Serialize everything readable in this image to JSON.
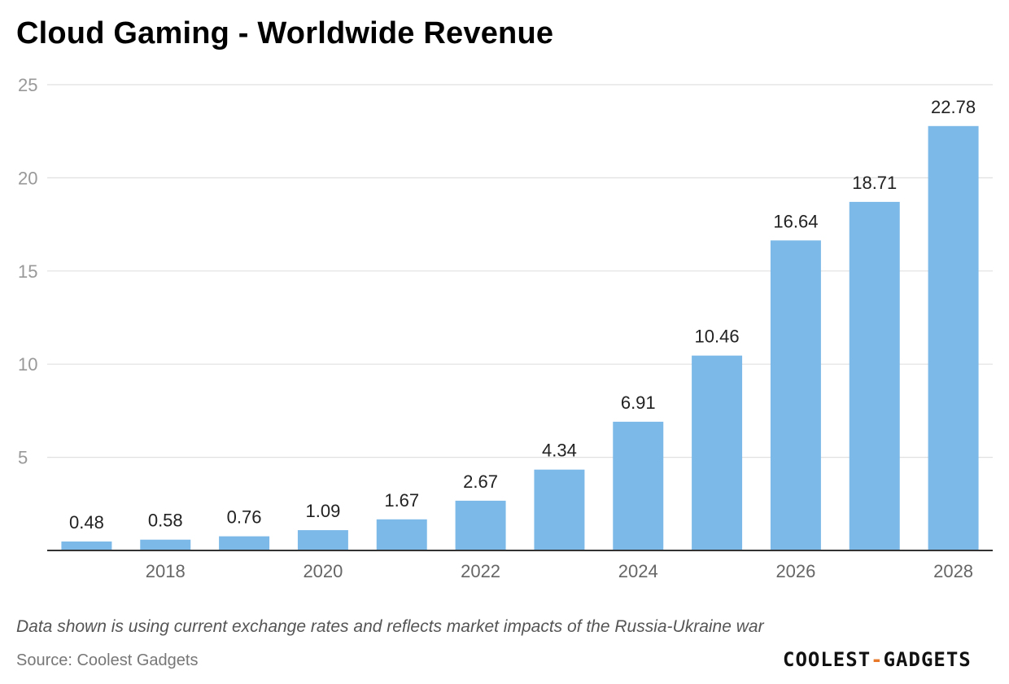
{
  "title": "Cloud Gaming - Worldwide Revenue",
  "note": "Data shown is using current exchange rates and reflects market impacts of the Russia-Ukraine war",
  "source": "Source: Coolest Gadgets",
  "logo": {
    "left": "COOLEST",
    "dash": "-",
    "right": "GADGETS"
  },
  "colors": {
    "bar": "#7cb9e8",
    "grid": "#e0e0e0",
    "axis": "#333333",
    "tick": "#999999",
    "label": "#222222"
  },
  "chart_data": {
    "type": "bar",
    "x": [
      2017,
      2018,
      2019,
      2020,
      2021,
      2022,
      2023,
      2024,
      2025,
      2026,
      2027,
      2028
    ],
    "values": [
      0.48,
      0.58,
      0.76,
      1.09,
      1.67,
      2.67,
      4.34,
      6.91,
      10.46,
      16.64,
      18.71,
      22.78
    ],
    "data_labels": [
      "0.48",
      "0.58",
      "0.76",
      "1.09",
      "1.67",
      "2.67",
      "4.34",
      "6.91",
      "10.46",
      "16.64",
      "18.71",
      "22.78"
    ],
    "x_tick_labels": [
      "2018",
      "2020",
      "2022",
      "2024",
      "2026",
      "2028"
    ],
    "y_ticks": [
      5,
      10,
      15,
      20,
      25
    ],
    "ylim": [
      0,
      25
    ],
    "title": "Cloud Gaming - Worldwide Revenue",
    "xlabel": "",
    "ylabel": "",
    "grid": true,
    "legend": "none"
  }
}
